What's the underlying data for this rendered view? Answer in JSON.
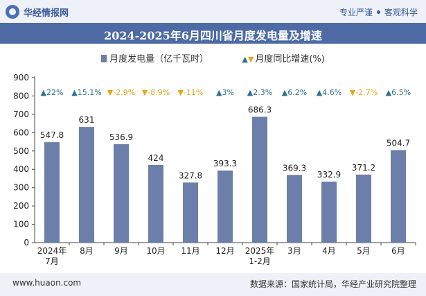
{
  "header": {
    "brand": "华经情报网",
    "tagline_left": "专业严谨",
    "tagline_right": "客观科学"
  },
  "legend": {
    "bar_label": "月度发电量（亿千瓦时）",
    "growth_label": "月度同比增速(%)"
  },
  "footer": {
    "site": "www.huaon.com",
    "source": "数据来源：国家统计局，华经产业研究院整理"
  },
  "colors": {
    "bar": "#6c7eaa",
    "up": "#2f6f8f",
    "down": "#e6a817",
    "title_bg": "#4d6aa4"
  },
  "chart_data": {
    "type": "bar",
    "title": "2024-2025年6月四川省月度发电量及增速",
    "categories": [
      "2024年\n7月",
      "8月",
      "9月",
      "10月",
      "11月",
      "12月",
      "2025年\n1-2月",
      "3月",
      "4月",
      "5月",
      "6月"
    ],
    "series": [
      {
        "name": "月度发电量（亿千瓦时）",
        "values": [
          547.8,
          631,
          536.9,
          424,
          327.8,
          393.3,
          686.3,
          369.3,
          332.9,
          371.2,
          504.7
        ],
        "labels": [
          "547.8",
          "631",
          "536.9",
          "424",
          "327.8",
          "393.3",
          "686.3",
          "369.3",
          "332.9",
          "371.2",
          "504.7"
        ]
      },
      {
        "name": "月度同比增速(%)",
        "values": [
          22,
          15.1,
          -2.9,
          -8.9,
          -11,
          3,
          2.3,
          6.2,
          4.6,
          -2.7,
          6.5
        ],
        "labels": [
          "22%",
          "15.1%",
          "-2.9%",
          "-8.9%",
          "-11%",
          "3%",
          "2.3%",
          "6.2%",
          "4.6%",
          "-2.7%",
          "6.5%"
        ]
      }
    ],
    "ylim": [
      0,
      900
    ],
    "yticks": [
      0,
      100,
      200,
      300,
      400,
      500,
      600,
      700,
      800,
      900
    ],
    "grid": false,
    "legend_position": "top"
  }
}
